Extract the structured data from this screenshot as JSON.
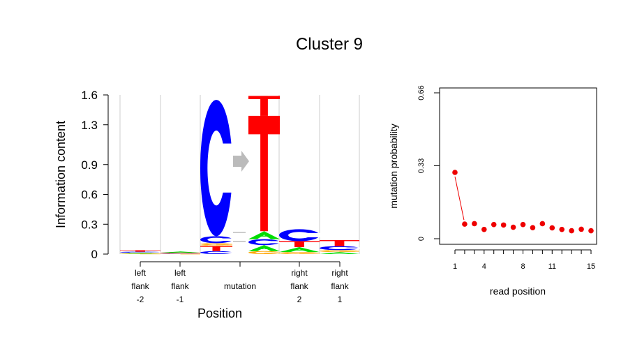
{
  "title": "Cluster 9",
  "colors": {
    "A": "#00dd00",
    "C": "#0000ff",
    "G": "#ffa500",
    "T": "#ff0000",
    "arrow": "#bbbbbb",
    "points": "#ee0000"
  },
  "chart_data": [
    {
      "type": "sequence-logo",
      "ylabel": "Information content",
      "xlabel": "Position",
      "yticks": [
        "0",
        "0.3",
        "0.6",
        "0.9",
        "1.3",
        "1.6"
      ],
      "ylim": [
        0,
        1.6
      ],
      "columns": [
        {
          "label": [
            "left",
            "flank",
            "-2"
          ],
          "letters": [
            {
              "base": "G",
              "ic": 0.006
            },
            {
              "base": "A",
              "ic": 0.008
            },
            {
              "base": "C",
              "ic": 0.01
            },
            {
              "base": "T",
              "ic": 0.014
            }
          ]
        },
        {
          "label": [
            "left",
            "flank",
            "-1"
          ],
          "letters": [
            {
              "base": "G",
              "ic": 0.004
            },
            {
              "base": "C",
              "ic": 0.006
            },
            {
              "base": "T",
              "ic": 0.004
            },
            {
              "base": "A",
              "ic": 0.012
            }
          ]
        },
        {
          "label": [
            "mutation"
          ],
          "group": "mutation",
          "from": [
            {
              "base": "C",
              "ic": 0.03
            },
            {
              "base": "T",
              "ic": 0.05
            },
            {
              "base": "G",
              "ic": 0.01
            },
            {
              "base": "G",
              "ic": 0.02
            },
            {
              "base": "C",
              "ic": 0.07
            },
            {
              "base": "C",
              "ic": 1.37
            }
          ],
          "to": [
            {
              "base": "G",
              "ic": 0.03
            },
            {
              "base": "A",
              "ic": 0.06
            },
            {
              "base": "C",
              "ic": 0.06
            },
            {
              "base": "A",
              "ic": 0.08
            },
            {
              "base": "T",
              "ic": 1.16
            },
            {
              "base": "T",
              "ic": 0.2
            }
          ]
        },
        {
          "label": [
            "right",
            "flank",
            "2"
          ],
          "letters": [
            {
              "base": "G",
              "ic": 0.02
            },
            {
              "base": "A",
              "ic": 0.05
            },
            {
              "base": "T",
              "ic": 0.06
            },
            {
              "base": "C",
              "ic": 0.12
            }
          ]
        },
        {
          "label": [
            "right",
            "flank",
            "1"
          ],
          "letters": [
            {
              "base": "A",
              "ic": 0.02
            },
            {
              "base": "G",
              "ic": 0.02
            },
            {
              "base": "C",
              "ic": 0.04
            },
            {
              "base": "T",
              "ic": 0.06
            }
          ]
        }
      ]
    },
    {
      "type": "scatter",
      "xlabel": "read position",
      "ylabel": "mutation probability",
      "xticks": [
        1,
        4,
        8,
        11,
        15
      ],
      "yticks": [
        "0",
        "0.33",
        "0.66"
      ],
      "xlim": [
        1,
        15
      ],
      "ylim": [
        0,
        0.66
      ],
      "x": [
        1,
        2,
        3,
        4,
        5,
        6,
        7,
        8,
        9,
        10,
        11,
        12,
        13,
        14,
        15
      ],
      "y": [
        0.3,
        0.066,
        0.068,
        0.042,
        0.064,
        0.062,
        0.052,
        0.064,
        0.05,
        0.068,
        0.049,
        0.042,
        0.036,
        0.043,
        0.036
      ]
    }
  ]
}
